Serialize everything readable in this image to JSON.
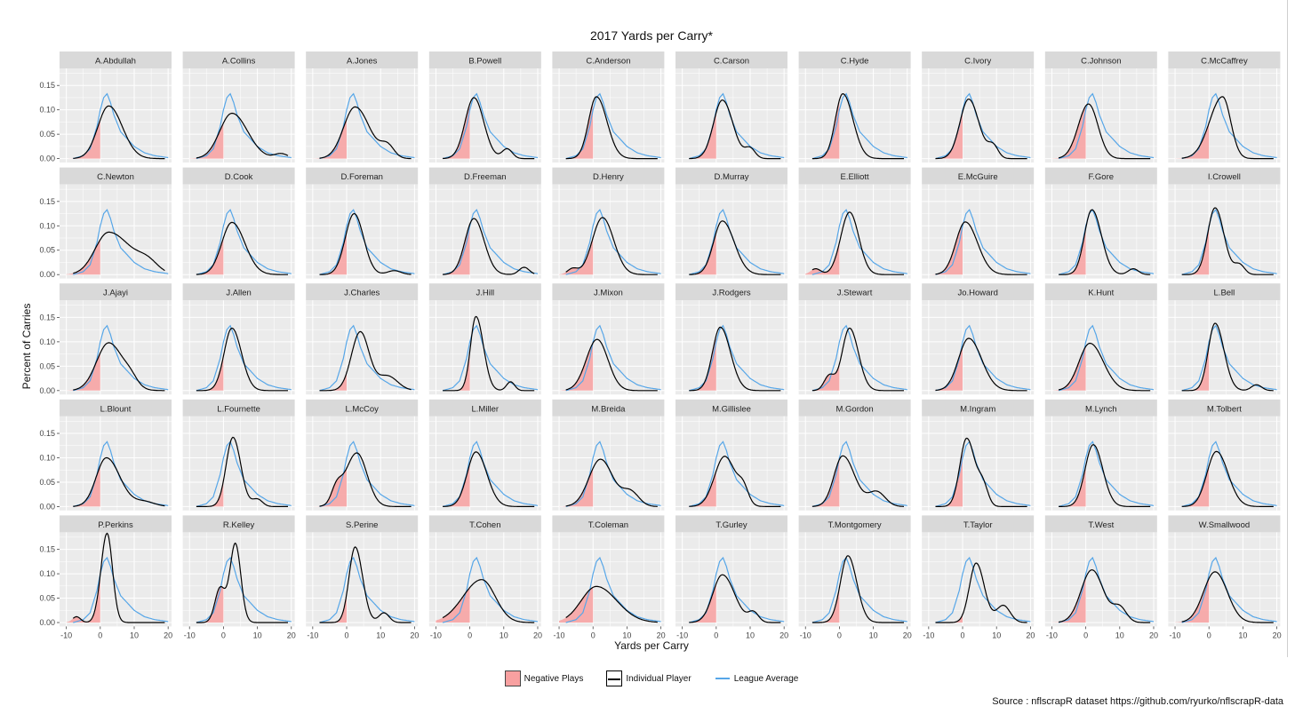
{
  "title": "2017 Yards per Carry*",
  "source": "Source : nflscrapR dataset https://github.com/ryurko/nflscrapR-data",
  "colors": {
    "panel_bg": "#ebebeb",
    "strip_bg": "#d9d9d9",
    "grid": "#ffffff",
    "negative_fill": "#f8a0a0",
    "individual": "#000000",
    "league": "#56a6e8"
  },
  "chart_data": {
    "type": "area",
    "xlabel": "Yards per Carry",
    "ylabel": "Percent of Carries",
    "xlim": [
      -12,
      21
    ],
    "ylim": [
      -0.008,
      0.185
    ],
    "x_ticks": [
      -10,
      0,
      10,
      20
    ],
    "x_tick_labels": [
      "-10",
      "0",
      "10",
      "20"
    ],
    "y_ticks": [
      0,
      0.05,
      0.1,
      0.15
    ],
    "y_tick_labels": [
      "0.00",
      "0.05",
      "0.10",
      "0.15"
    ],
    "grid": true,
    "facet_layout": {
      "rows": 5,
      "cols": 10
    },
    "legend": {
      "position": "bottom",
      "entries": [
        "Negative Plays",
        "Individual Player",
        "League Average"
      ]
    },
    "league_average": {
      "x": [
        -8,
        -5,
        -3,
        -1,
        0,
        1,
        2,
        3,
        4,
        6,
        8,
        10,
        13,
        16,
        20
      ],
      "y": [
        0.0,
        0.006,
        0.02,
        0.065,
        0.1,
        0.125,
        0.133,
        0.115,
        0.09,
        0.055,
        0.04,
        0.025,
        0.012,
        0.006,
        0.002
      ]
    },
    "players": [
      {
        "name": "A.Abdullah",
        "peak": 2.5,
        "height": 0.108,
        "left": 3.2,
        "right": 4.0,
        "bump": null
      },
      {
        "name": "A.Collins",
        "peak": 2.5,
        "height": 0.093,
        "left": 3.6,
        "right": 4.6,
        "bump": [
          17,
          0.01,
          2
        ]
      },
      {
        "name": "A.Jones",
        "peak": 2.5,
        "height": 0.106,
        "left": 3.4,
        "right": 4.2,
        "bump": [
          12,
          0.025,
          2
        ]
      },
      {
        "name": "B.Powell",
        "peak": 1.2,
        "height": 0.125,
        "left": 2.6,
        "right": 2.9,
        "bump": [
          11,
          0.02,
          1.5
        ]
      },
      {
        "name": "C.Anderson",
        "peak": 1.0,
        "height": 0.127,
        "left": 2.3,
        "right": 3.1,
        "bump": null
      },
      {
        "name": "C.Carson",
        "peak": 1.8,
        "height": 0.12,
        "left": 2.6,
        "right": 3.1,
        "bump": [
          10,
          0.02,
          1.5
        ]
      },
      {
        "name": "C.Hyde",
        "peak": 1.0,
        "height": 0.133,
        "left": 2.2,
        "right": 3.0,
        "bump": null
      },
      {
        "name": "C.Ivory",
        "peak": 1.8,
        "height": 0.122,
        "left": 2.6,
        "right": 3.0,
        "bump": [
          9,
          0.025,
          1.5
        ]
      },
      {
        "name": "C.Johnson",
        "peak": 0.8,
        "height": 0.112,
        "left": 3.0,
        "right": 2.8,
        "bump": null
      },
      {
        "name": "C.McCaffrey",
        "peak": 4.0,
        "height": 0.127,
        "left": 3.8,
        "right": 2.4,
        "bump": null
      },
      {
        "name": "C.Newton",
        "peak": 2.5,
        "height": 0.087,
        "left": 4.0,
        "right": 6.5,
        "bump": [
          14,
          0.02,
          3
        ]
      },
      {
        "name": "D.Cook",
        "peak": 2.5,
        "height": 0.107,
        "left": 3.0,
        "right": 3.8,
        "bump": null
      },
      {
        "name": "D.Foreman",
        "peak": 2.2,
        "height": 0.125,
        "left": 2.6,
        "right": 2.8,
        "bump": [
          14,
          0.008,
          2
        ]
      },
      {
        "name": "D.Freeman",
        "peak": 1.2,
        "height": 0.115,
        "left": 2.6,
        "right": 3.0,
        "bump": [
          16,
          0.015,
          1.5
        ]
      },
      {
        "name": "D.Henry",
        "peak": 2.8,
        "height": 0.117,
        "left": 3.0,
        "right": 3.3,
        "bump": [
          -6,
          0.012,
          1.5
        ]
      },
      {
        "name": "D.Murray",
        "peak": 1.8,
        "height": 0.11,
        "left": 2.6,
        "right": 3.5,
        "bump": null
      },
      {
        "name": "E.Elliott",
        "peak": 3.0,
        "height": 0.128,
        "left": 2.6,
        "right": 2.7,
        "bump": [
          -7,
          0.012,
          1.5
        ]
      },
      {
        "name": "E.McGuire",
        "peak": 0.8,
        "height": 0.108,
        "left": 2.8,
        "right": 3.6,
        "bump": null
      },
      {
        "name": "F.Gore",
        "peak": 1.8,
        "height": 0.133,
        "left": 2.2,
        "right": 2.8,
        "bump": [
          14,
          0.012,
          1.5
        ]
      },
      {
        "name": "I.Crowell",
        "peak": 1.8,
        "height": 0.137,
        "left": 2.2,
        "right": 2.6,
        "bump": [
          9,
          0.02,
          1.5
        ]
      },
      {
        "name": "J.Ajayi",
        "peak": 2.5,
        "height": 0.098,
        "left": 3.6,
        "right": 4.2,
        "bump": [
          9,
          0.015,
          2
        ]
      },
      {
        "name": "J.Allen",
        "peak": 2.5,
        "height": 0.128,
        "left": 2.3,
        "right": 2.8,
        "bump": null
      },
      {
        "name": "J.Charles",
        "peak": 4.0,
        "height": 0.12,
        "left": 2.6,
        "right": 2.6,
        "bump": [
          12,
          0.03,
          3
        ]
      },
      {
        "name": "J.Hill",
        "peak": 1.8,
        "height": 0.152,
        "left": 1.6,
        "right": 2.2,
        "bump": [
          12,
          0.018,
          1.2
        ]
      },
      {
        "name": "J.Mixon",
        "peak": 1.2,
        "height": 0.105,
        "left": 3.2,
        "right": 3.2,
        "bump": null
      },
      {
        "name": "J.Rodgers",
        "peak": 1.2,
        "height": 0.13,
        "left": 2.3,
        "right": 3.0,
        "bump": null
      },
      {
        "name": "J.Stewart",
        "peak": 3.0,
        "height": 0.128,
        "left": 2.2,
        "right": 2.6,
        "bump": [
          -3,
          0.03,
          1.5
        ]
      },
      {
        "name": "Jo.Howard",
        "peak": 1.8,
        "height": 0.107,
        "left": 3.0,
        "right": 3.8,
        "bump": null
      },
      {
        "name": "K.Hunt",
        "peak": 1.2,
        "height": 0.097,
        "left": 3.2,
        "right": 4.0,
        "bump": null
      },
      {
        "name": "L.Bell",
        "peak": 1.8,
        "height": 0.138,
        "left": 2.0,
        "right": 2.6,
        "bump": [
          14,
          0.012,
          1.5
        ]
      },
      {
        "name": "L.Blount",
        "peak": 1.8,
        "height": 0.1,
        "left": 3.0,
        "right": 4.0,
        "bump": [
          13,
          0.01,
          3
        ]
      },
      {
        "name": "L.Fournette",
        "peak": 2.8,
        "height": 0.142,
        "left": 2.0,
        "right": 2.3,
        "bump": [
          10,
          0.015,
          1.5
        ]
      },
      {
        "name": "L.McCoy",
        "peak": 3.0,
        "height": 0.11,
        "left": 3.4,
        "right": 3.0,
        "bump": [
          -3,
          0.03,
          1.5
        ]
      },
      {
        "name": "L.Miller",
        "peak": 1.8,
        "height": 0.112,
        "left": 2.6,
        "right": 3.2,
        "bump": null
      },
      {
        "name": "M.Breida",
        "peak": 2.2,
        "height": 0.097,
        "left": 3.4,
        "right": 3.6,
        "bump": [
          11,
          0.03,
          2.5
        ]
      },
      {
        "name": "M.Gillislee",
        "peak": 2.5,
        "height": 0.103,
        "left": 3.0,
        "right": 3.2,
        "bump": [
          8,
          0.03,
          1.5
        ]
      },
      {
        "name": "M.Gordon",
        "peak": 1.0,
        "height": 0.104,
        "left": 2.6,
        "right": 3.5,
        "bump": [
          11,
          0.03,
          2.5
        ]
      },
      {
        "name": "M.Ingram",
        "peak": 1.2,
        "height": 0.14,
        "left": 2.0,
        "right": 2.4,
        "bump": [
          6,
          0.04,
          1.5
        ]
      },
      {
        "name": "M.Lynch",
        "peak": 2.2,
        "height": 0.127,
        "left": 2.4,
        "right": 2.8,
        "bump": null
      },
      {
        "name": "M.Tolbert",
        "peak": 2.2,
        "height": 0.113,
        "left": 2.8,
        "right": 3.4,
        "bump": null
      },
      {
        "name": "P.Perkins",
        "peak": 2.0,
        "height": 0.183,
        "left": 1.8,
        "right": 1.6,
        "bump": [
          -7,
          0.012,
          1.2
        ]
      },
      {
        "name": "R.Kelley",
        "peak": 3.5,
        "height": 0.162,
        "left": 1.6,
        "right": 1.6,
        "bump": [
          -1,
          0.07,
          1.5
        ]
      },
      {
        "name": "S.Perine",
        "peak": 2.5,
        "height": 0.155,
        "left": 1.8,
        "right": 2.2,
        "bump": [
          11,
          0.02,
          1.5
        ]
      },
      {
        "name": "T.Cohen",
        "peak": 3.5,
        "height": 0.088,
        "left": 5.5,
        "right": 4.0,
        "bump": null
      },
      {
        "name": "T.Coleman",
        "peak": 1.0,
        "height": 0.074,
        "left": 4.5,
        "right": 6.0,
        "bump": null
      },
      {
        "name": "T.Gurley",
        "peak": 1.8,
        "height": 0.098,
        "left": 2.8,
        "right": 3.6,
        "bump": [
          11,
          0.02,
          1.5
        ]
      },
      {
        "name": "T.Montgomery",
        "peak": 2.5,
        "height": 0.137,
        "left": 2.2,
        "right": 2.6,
        "bump": null
      },
      {
        "name": "T.Taylor",
        "peak": 4.0,
        "height": 0.122,
        "left": 2.0,
        "right": 2.4,
        "bump": [
          12,
          0.035,
          2
        ]
      },
      {
        "name": "T.West",
        "peak": 1.8,
        "height": 0.108,
        "left": 3.2,
        "right": 3.4,
        "bump": [
          10,
          0.03,
          2
        ]
      },
      {
        "name": "W.Smallwood",
        "peak": 1.8,
        "height": 0.104,
        "left": 3.4,
        "right": 3.6,
        "bump": null
      }
    ]
  }
}
